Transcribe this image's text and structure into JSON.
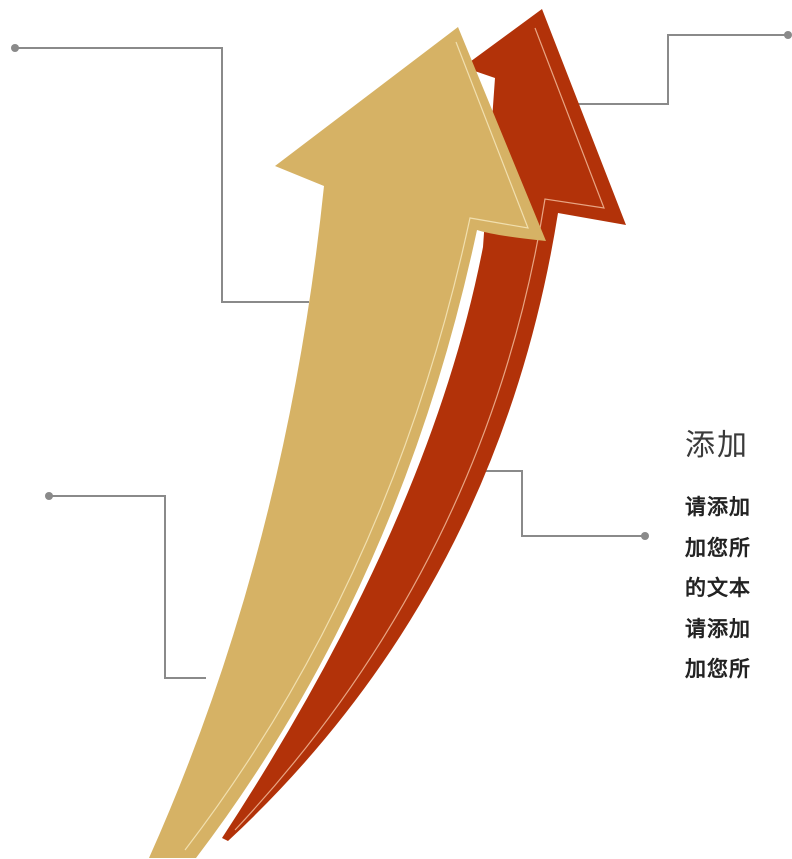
{
  "colors": {
    "connector": "#8a8a8a",
    "dot": "#8a8a8a",
    "gold_arrow": "#d6b265",
    "gold_arrow_highlight": "#f1dfae",
    "red_arrow": "#b23209",
    "red_arrow_highlight": "#e8a584",
    "text_dark": "#222222"
  },
  "text_block": {
    "title": "添加",
    "lines": [
      "请添加",
      "加您所",
      "的文本",
      "请添加",
      "加您所"
    ]
  }
}
